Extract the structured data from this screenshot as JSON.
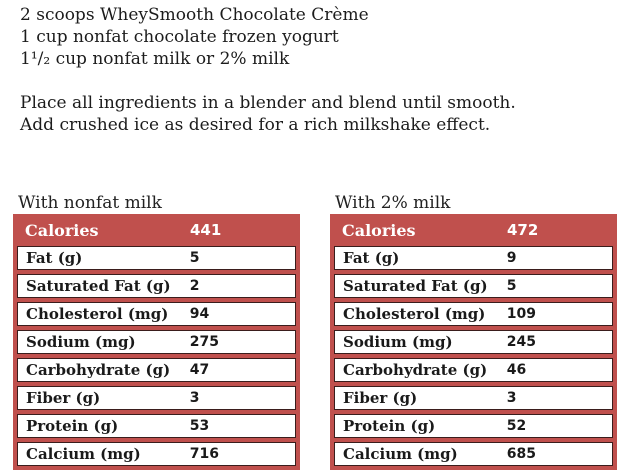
{
  "document": {
    "ingredients": [
      "2 scoops WheySmooth Chocolate Crème",
      "1 cup nonfat chocolate frozen yogurt",
      "1¹/₂ cup nonfat milk or 2% milk"
    ],
    "instructions": [
      "Place all ingredients in a blender and blend until smooth.",
      "Add crushed ice as desired for a rich milkshake effect."
    ]
  },
  "tables": [
    {
      "title": "With nonfat milk",
      "rows": [
        {
          "label": "Calories",
          "value": "441"
        },
        {
          "label": "Fat (g)",
          "value": "5"
        },
        {
          "label": "Saturated Fat (g)",
          "value": "2"
        },
        {
          "label": "Cholesterol (mg)",
          "value": "94"
        },
        {
          "label": "Sodium (mg)",
          "value": "275"
        },
        {
          "label": "Carbohydrate (g)",
          "value": "47"
        },
        {
          "label": "Fiber (g)",
          "value": "3"
        },
        {
          "label": "Protein (g)",
          "value": "53"
        },
        {
          "label": "Calcium (mg)",
          "value": "716"
        }
      ]
    },
    {
      "title": "With 2% milk",
      "rows": [
        {
          "label": "Calories",
          "value": "472"
        },
        {
          "label": "Fat (g)",
          "value": "9"
        },
        {
          "label": "Saturated Fat (g)",
          "value": "5"
        },
        {
          "label": "Cholesterol (mg)",
          "value": "109"
        },
        {
          "label": "Sodium (mg)",
          "value": "245"
        },
        {
          "label": "Carbohydrate (g)",
          "value": "46"
        },
        {
          "label": "Fiber (g)",
          "value": "3"
        },
        {
          "label": "Protein (g)",
          "value": "52"
        },
        {
          "label": "Calcium (mg)",
          "value": "685"
        }
      ]
    }
  ],
  "colors": {
    "accent_red": "#c0504d",
    "row_border_dark": "#3a1d1c",
    "header_text": "#ffffff",
    "body_text": "#1c1c1c",
    "row_background": "#ffffff"
  }
}
